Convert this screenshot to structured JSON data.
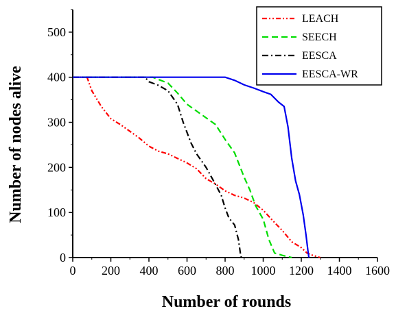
{
  "chart_data": {
    "type": "line",
    "title": "",
    "xlabel": "Number of rounds",
    "ylabel": "Number of nodes alive",
    "xlim": [
      0,
      1600
    ],
    "ylim": [
      0,
      550
    ],
    "x_ticks": [
      0,
      200,
      400,
      600,
      800,
      1000,
      1200,
      1400,
      1600
    ],
    "y_ticks": [
      0,
      100,
      200,
      300,
      400,
      500
    ],
    "grid": false,
    "legend_position": "top-right",
    "series": [
      {
        "name": "LEACH",
        "color": "#ff0000",
        "dash": "dash-dot-dot",
        "points": [
          [
            0,
            400
          ],
          [
            75,
            400
          ],
          [
            100,
            370
          ],
          [
            150,
            335
          ],
          [
            200,
            308
          ],
          [
            250,
            295
          ],
          [
            300,
            280
          ],
          [
            350,
            265
          ],
          [
            400,
            247
          ],
          [
            450,
            236
          ],
          [
            500,
            230
          ],
          [
            550,
            220
          ],
          [
            600,
            210
          ],
          [
            650,
            197
          ],
          [
            700,
            175
          ],
          [
            750,
            163
          ],
          [
            800,
            148
          ],
          [
            850,
            138
          ],
          [
            900,
            132
          ],
          [
            950,
            122
          ],
          [
            1000,
            105
          ],
          [
            1050,
            82
          ],
          [
            1100,
            60
          ],
          [
            1150,
            35
          ],
          [
            1200,
            22
          ],
          [
            1230,
            10
          ],
          [
            1260,
            5
          ],
          [
            1300,
            0
          ]
        ]
      },
      {
        "name": "SEECH",
        "color": "#00dd00",
        "dash": "dash",
        "points": [
          [
            0,
            400
          ],
          [
            420,
            400
          ],
          [
            450,
            395
          ],
          [
            500,
            387
          ],
          [
            550,
            365
          ],
          [
            600,
            340
          ],
          [
            650,
            325
          ],
          [
            700,
            310
          ],
          [
            750,
            295
          ],
          [
            800,
            262
          ],
          [
            850,
            232
          ],
          [
            900,
            178
          ],
          [
            930,
            150
          ],
          [
            960,
            115
          ],
          [
            1000,
            85
          ],
          [
            1030,
            40
          ],
          [
            1060,
            10
          ],
          [
            1100,
            5
          ],
          [
            1150,
            0
          ]
        ]
      },
      {
        "name": "EESCA",
        "color": "#000000",
        "dash": "dash-dot",
        "points": [
          [
            0,
            400
          ],
          [
            380,
            400
          ],
          [
            400,
            390
          ],
          [
            450,
            382
          ],
          [
            500,
            370
          ],
          [
            550,
            340
          ],
          [
            580,
            300
          ],
          [
            620,
            255
          ],
          [
            650,
            230
          ],
          [
            700,
            200
          ],
          [
            750,
            162
          ],
          [
            780,
            138
          ],
          [
            800,
            110
          ],
          [
            820,
            88
          ],
          [
            850,
            72
          ],
          [
            870,
            40
          ],
          [
            880,
            10
          ],
          [
            885,
            0
          ]
        ]
      },
      {
        "name": "EESCA-WR",
        "color": "#0000ee",
        "dash": "solid",
        "points": [
          [
            0,
            400
          ],
          [
            800,
            400
          ],
          [
            850,
            393
          ],
          [
            900,
            383
          ],
          [
            950,
            376
          ],
          [
            1000,
            368
          ],
          [
            1040,
            362
          ],
          [
            1080,
            345
          ],
          [
            1110,
            335
          ],
          [
            1130,
            290
          ],
          [
            1150,
            220
          ],
          [
            1170,
            170
          ],
          [
            1190,
            140
          ],
          [
            1210,
            95
          ],
          [
            1225,
            50
          ],
          [
            1235,
            15
          ],
          [
            1240,
            0
          ]
        ]
      }
    ]
  }
}
